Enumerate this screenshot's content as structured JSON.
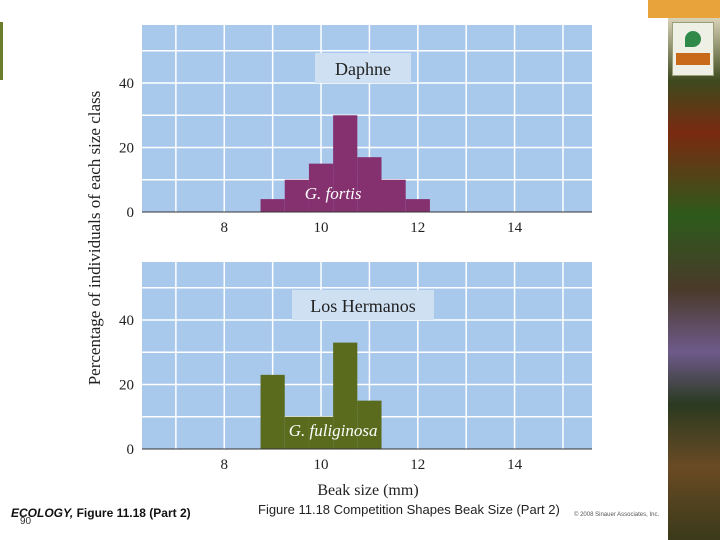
{
  "chart_data": [
    {
      "type": "bar",
      "panel_label": "Daphne",
      "species_label": "G. fortis",
      "x": [
        9,
        9.5,
        10,
        10.5,
        11,
        11.5,
        12
      ],
      "values": [
        4,
        10,
        15,
        30,
        17,
        10,
        4
      ],
      "bin_width": 0.5,
      "xlim": [
        6.3,
        15.6
      ],
      "ylim": [
        0,
        58
      ],
      "xticks": [
        8,
        10,
        12,
        14
      ],
      "yticks": [
        0,
        20,
        40
      ],
      "grid": true,
      "bar_color": "#85306f",
      "plot_bg": "#a8c8ec"
    },
    {
      "type": "bar",
      "panel_label": "Los Hermanos",
      "species_label": "G. fuliginosa",
      "x": [
        9,
        9.5,
        10,
        10.5,
        11
      ],
      "values": [
        23,
        10,
        10,
        33,
        15
      ],
      "bin_width": 0.5,
      "xlim": [
        6.3,
        15.6
      ],
      "ylim": [
        0,
        58
      ],
      "xticks": [
        8,
        10,
        12,
        14
      ],
      "yticks": [
        0,
        20,
        40
      ],
      "grid": true,
      "bar_color": "#5a6b1e",
      "plot_bg": "#a8c8ec"
    }
  ],
  "axes": {
    "ylabel": "Percentage of individuals of each size class",
    "xlabel": "Beak size (mm)"
  },
  "caption": "Figure 11.18 Competition Shapes Beak Size (Part 2)",
  "credit": {
    "book": "ECOLOGY,",
    "figure": "Figure 11.18 (Part 2)"
  },
  "slide_number": "90",
  "copyright": "© 2008 Sinauer Associates, Inc."
}
